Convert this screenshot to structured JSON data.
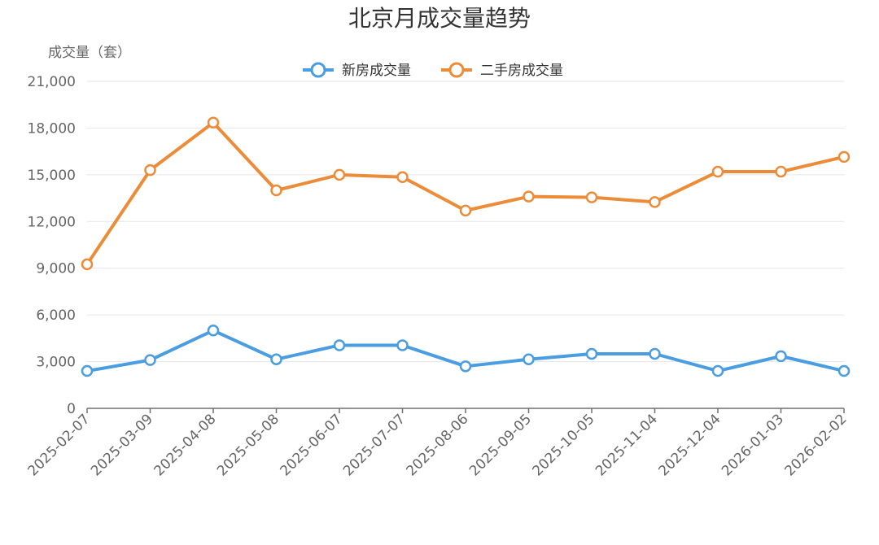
{
  "chart_data": {
    "type": "line",
    "title": "北京月成交量趋势",
    "ylabel": "成交量（套）",
    "xlabel": "",
    "ylim": [
      0,
      21000
    ],
    "yticks": [
      "0",
      "3,000",
      "6,000",
      "9,000",
      "12,000",
      "15,000",
      "18,000",
      "21,000"
    ],
    "grid": true,
    "legend_position": "top-center",
    "categories": [
      "2025-02-07",
      "2025-03-09",
      "2025-04-08",
      "2025-05-08",
      "2025-06-07",
      "2025-07-07",
      "2025-08-06",
      "2025-09-05",
      "2025-10-05",
      "2025-11-04",
      "2025-12-04",
      "2026-01-03",
      "2026-02-02"
    ],
    "series": [
      {
        "name": "新房成交量",
        "color": "#4a9de0",
        "values": [
          2400,
          3100,
          5000,
          3150,
          4050,
          4050,
          2700,
          3150,
          3500,
          3500,
          2400,
          3350,
          2400
        ]
      },
      {
        "name": "二手房成交量",
        "color": "#ed8c38",
        "values": [
          9250,
          15300,
          18350,
          14000,
          15000,
          14850,
          12700,
          13600,
          13550,
          13250,
          15200,
          15200,
          16150
        ]
      }
    ]
  }
}
